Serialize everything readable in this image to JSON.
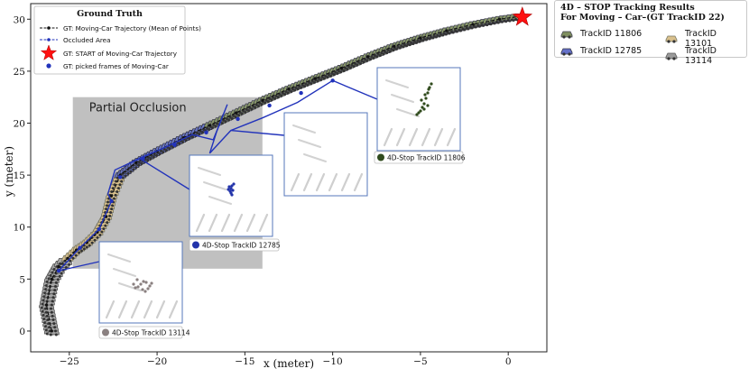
{
  "chart_data": {
    "type": "scatter",
    "xlabel": "x (meter)",
    "ylabel": "y (meter)",
    "xlim": [
      -27.2,
      2.2
    ],
    "ylim": [
      -2.0,
      31.5
    ],
    "xticks": [
      -25,
      -20,
      -15,
      -10,
      -5,
      0
    ],
    "yticks": [
      0,
      5,
      10,
      15,
      20,
      25,
      30
    ],
    "grid": false,
    "occluded_area": {
      "label": "Partial Occlusion",
      "x": [
        -24.8,
        -14.0
      ],
      "y": [
        6.0,
        22.5
      ]
    },
    "gt_trajectory": {
      "name": "GT: Moving-Car Trajectory (Mean of Points)",
      "x": [
        -26.0,
        -26.3,
        -26.0,
        -25.6,
        -25.1,
        -24.6,
        -24.0,
        -23.4,
        -22.9,
        -22.6,
        -22.1,
        -21.2,
        -20.0,
        -18.5,
        -17.0,
        -15.5,
        -14.0,
        -12.5,
        -11.0,
        -9.5,
        -8.0,
        -6.5,
        -5.0,
        -3.5,
        -2.0,
        -0.5,
        0.8
      ],
      "y": [
        0.0,
        2.5,
        5.0,
        6.2,
        7.0,
        7.8,
        8.5,
        9.5,
        11.0,
        13.0,
        15.0,
        16.2,
        17.3,
        18.6,
        19.8,
        21.0,
        22.2,
        23.3,
        24.3,
        25.3,
        26.4,
        27.4,
        28.2,
        28.9,
        29.5,
        30.0,
        30.3
      ]
    },
    "start": {
      "name": "GT: START of Moving-Car Trajectory",
      "x": 0.8,
      "y": 30.2
    },
    "picked_frames": {
      "name": "GT: picked frames of Moving-Car",
      "x": [
        -25.6,
        -24.4,
        -23.3,
        -22.6,
        -22.1,
        -20.8,
        -19.0,
        -17.2,
        -15.4,
        -13.6,
        -11.8,
        -10.0
      ],
      "y": [
        5.8,
        8.0,
        9.8,
        12.5,
        14.8,
        16.6,
        17.9,
        19.1,
        20.4,
        21.7,
        22.9,
        24.1
      ]
    },
    "track_series": [
      {
        "name": "TrackID 11806",
        "color": "#7f8f5f"
      },
      {
        "name": "TrackID 13101",
        "color": "#d9c08c"
      },
      {
        "name": "TrackID 12785",
        "color": "#6470c8"
      },
      {
        "name": "TrackID 13114",
        "color": "#9a9a9a"
      }
    ],
    "track_12785_path": {
      "x": [
        -25.6,
        -24.4,
        -23.3,
        -22.6,
        -22.8,
        -22.4,
        -21.0,
        -19.5,
        -18.0,
        -16.8,
        -16.0,
        -16.6,
        -17.0,
        -15.8,
        -14.0,
        -12.0,
        -10.0
      ],
      "y": [
        5.8,
        8.0,
        9.8,
        12.5,
        13.2,
        15.5,
        16.6,
        17.7,
        18.9,
        18.4,
        21.8,
        19.2,
        17.1,
        19.3,
        20.5,
        22.0,
        24.1
      ]
    },
    "insets": [
      {
        "label": "4D-Stop TrackID 13114",
        "color": "#8a8080"
      },
      {
        "label": "4D-Stop TrackID 12785",
        "color": "#2233aa"
      },
      {
        "label": "4D-Stop TrackID 11806",
        "color": "#2f4a1c"
      }
    ]
  },
  "legend_main": {
    "title": "Ground Truth",
    "items": [
      "GT: Moving-Car Trajectory (Mean of Points)",
      "Occluded Area",
      "GT: START of Moving-Car Trajectory",
      "GT: picked frames of Moving-Car"
    ]
  },
  "legend_side": {
    "title_line1": "4D – STOP Tracking Results",
    "title_line2": "For Moving – Car–(GT TrackID 22)",
    "items": [
      {
        "label": "TrackID 11806",
        "color": "#7f8f5f"
      },
      {
        "label": "TrackID 13101",
        "color": "#d9c08c"
      },
      {
        "label": "TrackID 12785",
        "color": "#6470c8"
      },
      {
        "label": "TrackID 13114",
        "color": "#9a9a9a"
      }
    ]
  }
}
